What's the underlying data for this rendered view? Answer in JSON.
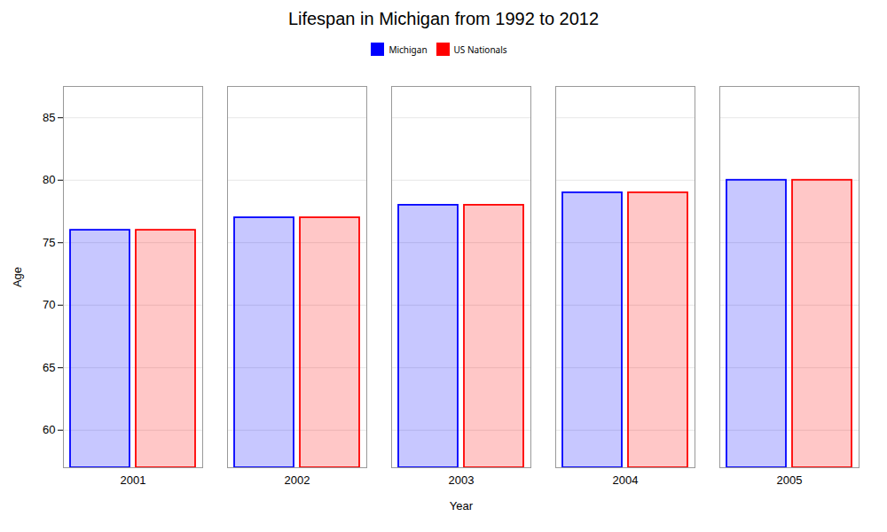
{
  "chart_data": {
    "type": "bar",
    "title": "Lifespan in Michigan from 1992 to 2012",
    "xlabel": "Year",
    "ylabel": "Age",
    "categories": [
      "2001",
      "2002",
      "2003",
      "2004",
      "2005"
    ],
    "series": [
      {
        "name": "Michigan",
        "color": "#0000ff",
        "values": [
          76.0,
          77.0,
          78.0,
          79.0,
          80.0
        ]
      },
      {
        "name": "US Nationals",
        "color": "#ff0000",
        "values": [
          76.0,
          77.0,
          78.0,
          79.0,
          80.0
        ]
      }
    ],
    "ylim": [
      57.0,
      87.5
    ],
    "yticks": [
      60,
      65,
      70,
      75,
      80,
      85
    ],
    "grid": true,
    "legend": "top"
  }
}
